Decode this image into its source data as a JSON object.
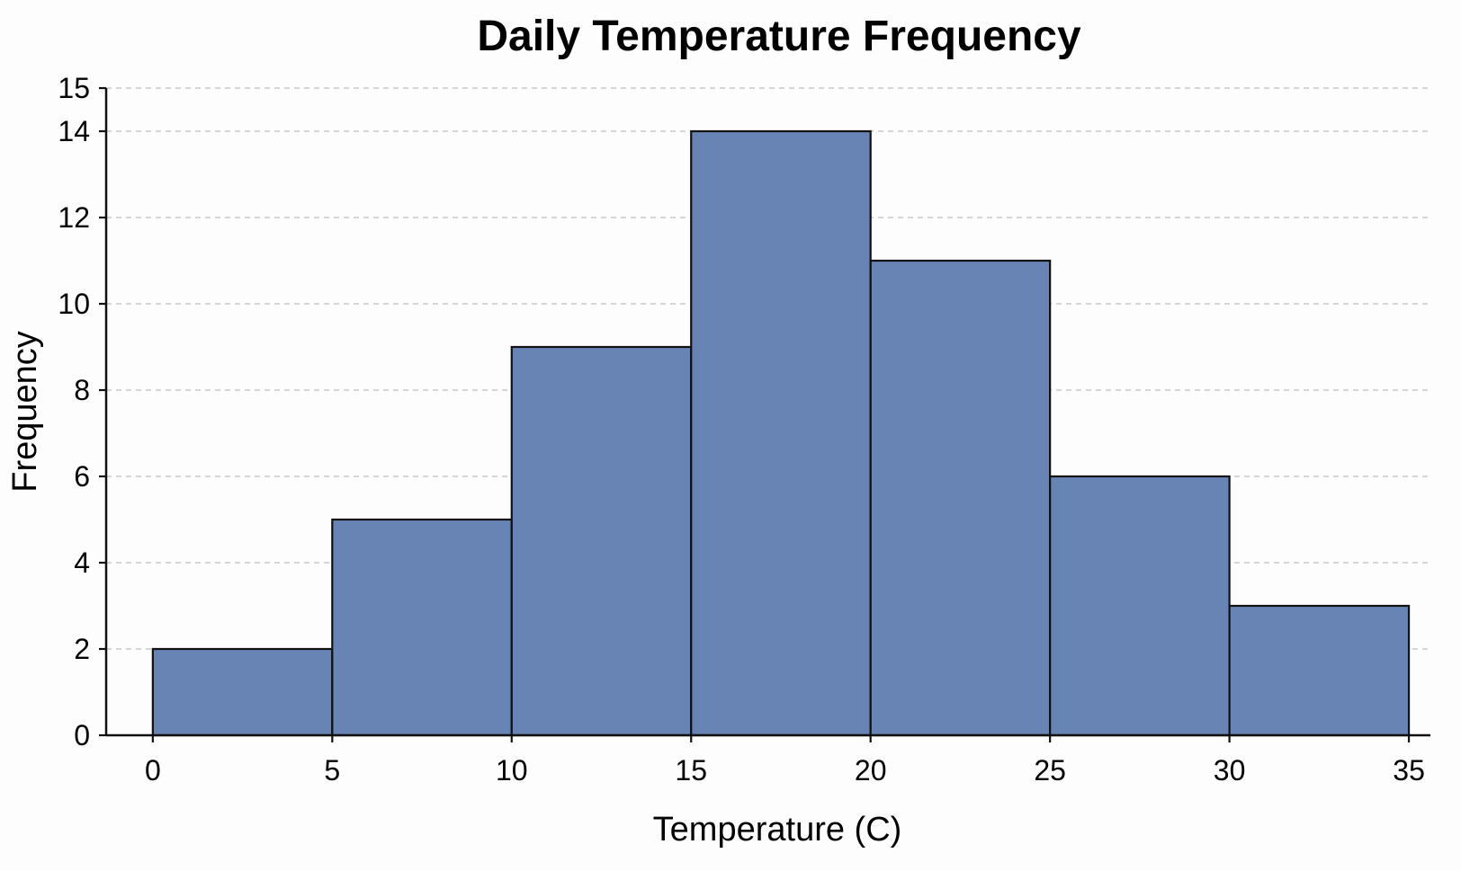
{
  "chart_data": {
    "type": "bar",
    "subtype": "histogram",
    "title": "Daily Temperature Frequency",
    "xlabel": "Temperature (C)",
    "ylabel": "Frequency",
    "bins": [
      {
        "start": 0,
        "end": 5,
        "value": 2
      },
      {
        "start": 5,
        "end": 10,
        "value": 5
      },
      {
        "start": 10,
        "end": 15,
        "value": 9
      },
      {
        "start": 15,
        "end": 20,
        "value": 14
      },
      {
        "start": 20,
        "end": 25,
        "value": 11
      },
      {
        "start": 25,
        "end": 30,
        "value": 6
      },
      {
        "start": 30,
        "end": 35,
        "value": 3
      }
    ],
    "xticks": [
      "0",
      "5",
      "10",
      "15",
      "20",
      "25",
      "30",
      "35"
    ],
    "yticks": [
      "0",
      "2",
      "4",
      "6",
      "8",
      "10",
      "12",
      "14",
      "15"
    ],
    "xlim": [
      -1.3,
      35.6
    ],
    "ylim": [
      0,
      15
    ],
    "grid": "horizontal-dashed",
    "colors": {
      "bar_fill": "#6784b5",
      "bar_stroke": "#111111",
      "grid": "#c8c8c8",
      "axis": "#111111"
    }
  }
}
